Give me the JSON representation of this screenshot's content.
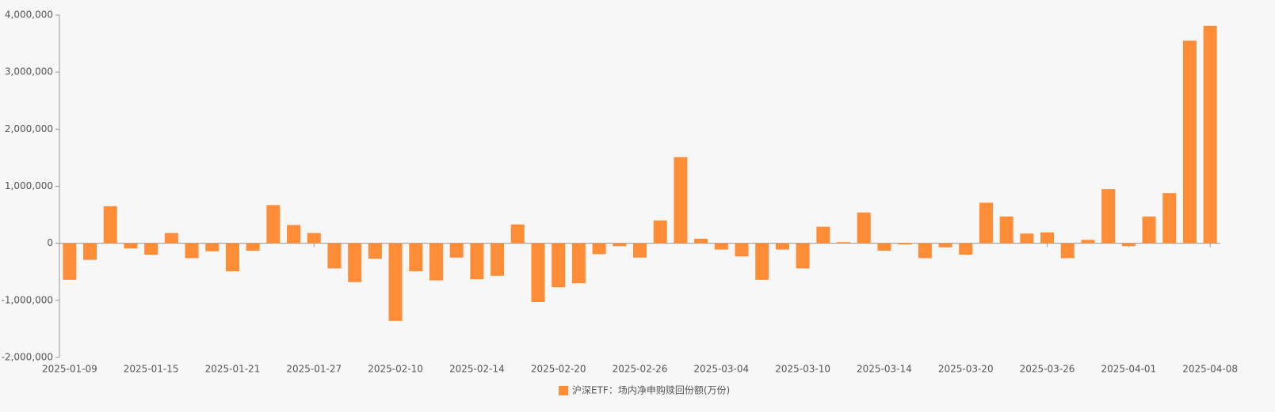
{
  "chart_data": {
    "type": "bar",
    "categories": [
      "2025-01-09",
      null,
      null,
      null,
      "2025-01-15",
      null,
      null,
      null,
      "2025-01-21",
      null,
      null,
      null,
      "2025-01-27",
      null,
      null,
      null,
      "2025-02-10",
      null,
      null,
      null,
      "2025-02-14",
      null,
      null,
      null,
      "2025-02-20",
      null,
      null,
      null,
      "2025-02-26",
      null,
      null,
      null,
      "2025-03-04",
      null,
      null,
      null,
      "2025-03-10",
      null,
      null,
      null,
      "2025-03-14",
      null,
      null,
      null,
      "2025-03-20",
      null,
      null,
      null,
      "2025-03-26",
      null,
      null,
      null,
      "2025-04-01",
      null,
      null,
      null,
      "2025-04-08"
    ],
    "series": [
      {
        "name": "沪深ETF：场内净申购赎回份额(万份)",
        "color": "#ff8c37",
        "values": [
          -640000,
          -290000,
          650000,
          -90000,
          -200000,
          180000,
          -260000,
          -140000,
          -490000,
          -130000,
          670000,
          320000,
          180000,
          -440000,
          -680000,
          -270000,
          -1360000,
          -490000,
          -650000,
          -250000,
          -630000,
          -570000,
          330000,
          -1030000,
          -770000,
          -700000,
          -190000,
          -50000,
          -250000,
          400000,
          1510000,
          80000,
          -110000,
          -230000,
          -640000,
          -110000,
          -440000,
          290000,
          20000,
          540000,
          -130000,
          -20000,
          -260000,
          -70000,
          -200000,
          710000,
          470000,
          170000,
          190000,
          -260000,
          60000,
          950000,
          -50000,
          470000,
          880000,
          3550000,
          3810000
        ]
      }
    ],
    "ylim": [
      -2000000,
      4000000
    ],
    "yticks": [
      {
        "value": -2000000,
        "label": "-2,000,000"
      },
      {
        "value": -1000000,
        "label": "-1,000,000"
      },
      0,
      {
        "value": 1000000,
        "label": "1,000,000"
      },
      {
        "value": 2000000,
        "label": "2,000,000"
      },
      {
        "value": 3000000,
        "label": "3,000,000"
      },
      {
        "value": 4000000,
        "label": "4,000,000"
      }
    ],
    "grid": false,
    "legend": "bottom"
  }
}
